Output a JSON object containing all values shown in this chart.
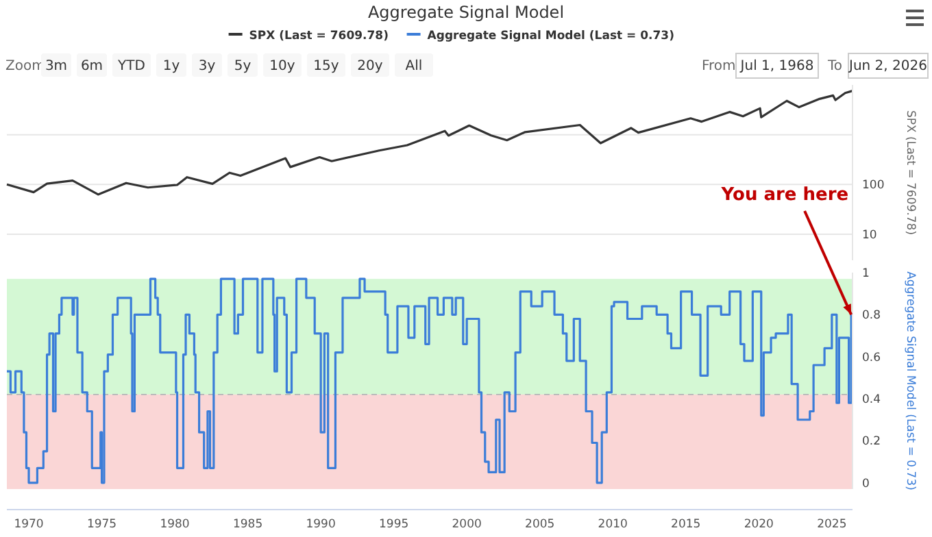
{
  "chart_data": [
    {
      "type": "line",
      "title": "Aggregate Signal Model",
      "ylabel": "SPX (Last = 7609.78)",
      "log": "y",
      "grid": "y",
      "legend": "top",
      "tick_labels": "y",
      "xlim": [
        "1968-07-01",
        "2026-06-02"
      ],
      "ylim": [
        3,
        10000
      ],
      "yticks": [
        {
          "value": 1000,
          "label": null
        },
        100,
        10
      ],
      "annotations": [
        "Zoom",
        "3m",
        "6m",
        "YTD",
        "1y",
        "3y",
        "5y",
        "10y",
        "15y",
        "20y",
        "All",
        "From",
        "Jul 1, 1968",
        "To",
        "Jun 2, 2026"
      ],
      "series": [
        {
          "name": "SPX (Last = 7609.78)",
          "color": "#333333",
          "x": [
            "1968-07",
            "1970-05",
            "1971-04",
            "1973-01",
            "1974-10",
            "1976-09",
            "1978-03",
            "1980-03",
            "1980-11",
            "1982-08",
            "1983-10",
            "1984-07",
            "1987-08",
            "1987-12",
            "1989-12",
            "1990-10",
            "1994-01",
            "1995-12",
            "1998-07",
            "1998-10",
            "2000-03",
            "2001-09",
            "2002-10",
            "2004-01",
            "2007-10",
            "2009-03",
            "2011-04",
            "2011-10",
            "2015-05",
            "2016-02",
            "2018-01",
            "2018-12",
            "2020-02",
            "2020-03",
            "2021-12",
            "2022-10",
            "2024-03",
            "2025-02",
            "2025-04",
            "2025-12",
            "2026-06"
          ],
          "values": [
            100,
            70,
            104,
            120,
            63,
            107,
            87,
            98,
            140,
            103,
            172,
            150,
            336,
            224,
            353,
            295,
            482,
            616,
            1190,
            960,
            1530,
            965,
            776,
            1130,
            1565,
            676,
            1360,
            1100,
            2130,
            1830,
            2870,
            2350,
            3390,
            2240,
            4790,
            3580,
            5250,
            6140,
            4980,
            6900,
            7609.78
          ]
        }
      ]
    },
    {
      "type": "step",
      "ylabel": "Aggregate Signal Model (Last = 0.73)",
      "legend": "top",
      "xlim": [
        "1968-07-01",
        "2026-06-02"
      ],
      "xticks": [
        "1970",
        "1975",
        "1980",
        "1985",
        "1990",
        "1995",
        "2000",
        "2005",
        "2010",
        "2015",
        "2020",
        "2025"
      ],
      "ylim": [
        -0.03,
        1
      ],
      "yticks": [
        0,
        0.2,
        0.4,
        0.6,
        0.8,
        1
      ],
      "bands": [
        {
          "axis": "y",
          "from": 0.42,
          "to": 0.97,
          "color": "#d4f8d4"
        },
        {
          "axis": "y",
          "from": -0.03,
          "to": 0.42,
          "color": "#fad6d6"
        }
      ],
      "ref_lines": [
        {
          "axis": "y",
          "value": 0.42,
          "color": "#bbbbbb",
          "line_style": "dashed"
        }
      ],
      "annotations": [
        {
          "text": "You are here",
          "x": "2026-05",
          "y": 0.8
        }
      ],
      "series": [
        {
          "name": "Aggregate Signal Model (Last = 0.73)",
          "color": "#3b7dd8",
          "x": [
            "1968-07",
            "1968-10",
            "1969-02",
            "1969-07",
            "1969-09",
            "1969-11",
            "1970-01",
            "1970-08",
            "1971-01",
            "1971-04",
            "1971-06",
            "1971-09",
            "1971-11",
            "1972-02",
            "1972-04",
            "1973-01",
            "1973-02",
            "1973-05",
            "1973-09",
            "1974-01",
            "1974-05",
            "1974-12",
            "1975-01",
            "1975-03",
            "1975-06",
            "1975-10",
            "1976-02",
            "1977-01",
            "1977-02",
            "1977-04",
            "1978-05",
            "1978-09",
            "1978-11",
            "1979-01",
            "1980-02",
            "1980-03",
            "1980-08",
            "1980-10",
            "1981-01",
            "1981-05",
            "1981-06",
            "1981-09",
            "1982-01",
            "1982-04",
            "1982-06",
            "1982-09",
            "1982-12",
            "1983-03",
            "1984-02",
            "1984-05",
            "1984-09",
            "1985-09",
            "1986-01",
            "1986-10",
            "1986-11",
            "1987-01",
            "1987-07",
            "1987-09",
            "1988-01",
            "1988-05",
            "1989-01",
            "1989-08",
            "1990-01",
            "1990-04",
            "1990-07",
            "1991-01",
            "1991-07",
            "1992-09",
            "1993-01",
            "1994-06",
            "1994-08",
            "1995-04",
            "1996-01",
            "1996-06",
            "1997-03",
            "1997-06",
            "1998-01",
            "1998-06",
            "1999-01",
            "1999-04",
            "1999-10",
            "2000-01",
            "2000-07",
            "2000-11",
            "2001-01",
            "2001-04",
            "2001-07",
            "2002-01",
            "2002-04",
            "2002-08",
            "2002-12",
            "2003-05",
            "2003-09",
            "2004-06",
            "2005-03",
            "2006-01",
            "2006-08",
            "2006-11",
            "2007-05",
            "2007-10",
            "2008-03",
            "2008-08",
            "2008-12",
            "2009-04",
            "2009-08",
            "2009-12",
            "2010-02",
            "2011-01",
            "2012-01",
            "2013-01",
            "2013-10",
            "2014-01",
            "2014-09",
            "2015-06",
            "2016-01",
            "2016-07",
            "2017-06",
            "2018-01",
            "2018-10",
            "2019-01",
            "2019-08",
            "2020-03",
            "2020-05",
            "2020-11",
            "2021-03",
            "2022-01",
            "2022-04",
            "2022-09",
            "2023-07",
            "2023-10",
            "2024-07",
            "2025-01",
            "2025-05",
            "2025-07",
            "2026-03",
            "2026-05"
          ],
          "values": [
            0.53,
            0.43,
            0.53,
            0.43,
            0.24,
            0.07,
            0,
            0.07,
            0.15,
            0.61,
            0.71,
            0.34,
            0.71,
            0.8,
            0.88,
            0.8,
            0.88,
            0.62,
            0.43,
            0.34,
            0.07,
            0.24,
            0,
            0.53,
            0.61,
            0.8,
            0.88,
            0.71,
            0.34,
            0.8,
            0.97,
            0.88,
            0.8,
            0.62,
            0.43,
            0.07,
            0.61,
            0.8,
            0.71,
            0.61,
            0.43,
            0.24,
            0.07,
            0.34,
            0.07,
            0.62,
            0.8,
            0.97,
            0.71,
            0.8,
            0.97,
            0.62,
            0.97,
            0.8,
            0.53,
            0.88,
            0.8,
            0.43,
            0.62,
            0.97,
            0.88,
            0.71,
            0.24,
            0.71,
            0.07,
            0.62,
            0.88,
            0.97,
            0.91,
            0.8,
            0.62,
            0.84,
            0.69,
            0.84,
            0.66,
            0.88,
            0.8,
            0.88,
            0.8,
            0.88,
            0.66,
            0.78,
            0.78,
            0.43,
            0.24,
            0.1,
            0.05,
            0.3,
            0.05,
            0.43,
            0.34,
            0.62,
            0.91,
            0.84,
            0.91,
            0.8,
            0.71,
            0.58,
            0.78,
            0.58,
            0.34,
            0.19,
            0,
            0.24,
            0.43,
            0.84,
            0.86,
            0.78,
            0.84,
            0.8,
            0.71,
            0.64,
            0.91,
            0.8,
            0.51,
            0.84,
            0.8,
            0.91,
            0.66,
            0.58,
            0.91,
            0.32,
            0.62,
            0.69,
            0.71,
            0.8,
            0.47,
            0.3,
            0.34,
            0.56,
            0.64,
            0.8,
            0.38,
            0.69,
            0.38,
            0.8
          ]
        }
      ]
    }
  ]
}
